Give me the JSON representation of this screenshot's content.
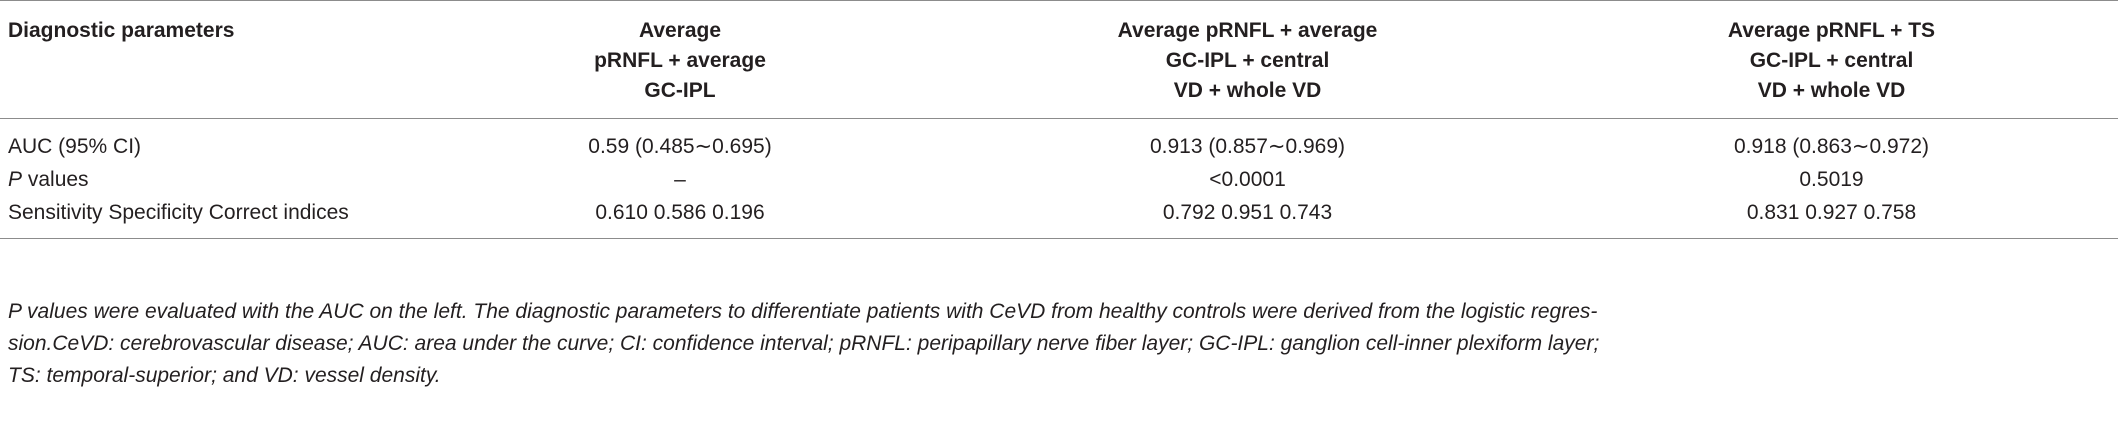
{
  "table": {
    "headers": [
      [
        "Diagnostic parameters"
      ],
      [
        "Average",
        "pRNFL + average",
        "GC-IPL"
      ],
      [
        "Average pRNFL + average",
        "GC-IPL + central",
        "VD + whole VD"
      ],
      [
        "Average pRNFL + TS",
        "GC-IPL + central",
        "VD + whole VD"
      ]
    ],
    "rows": [
      {
        "label": "AUC (95% CI)",
        "values": [
          "0.59 (0.485∼0.695)",
          "0.913 (0.857∼0.969)",
          "0.918 (0.863∼0.972)"
        ]
      },
      {
        "label_italic": "P",
        "label_rest": " values",
        "values": [
          "–",
          "<0.0001",
          "0.5019"
        ]
      },
      {
        "label": "Sensitivity Specificity Correct indices",
        "values": [
          "0.610 0.586 0.196",
          "0.792 0.951 0.743",
          "0.831 0.927 0.758"
        ]
      }
    ]
  },
  "footnote": {
    "lines": [
      "P values were evaluated with the AUC on the left. The diagnostic parameters to differentiate patients with CeVD from healthy controls were derived from the logistic regres-",
      "sion.CeVD: cerebrovascular disease; AUC: area under the curve; CI: confidence interval; pRNFL: peripapillary nerve fiber layer; GC-IPL: ganglion cell-inner plexiform layer;",
      "TS: temporal-superior; and VD: vessel density."
    ]
  }
}
